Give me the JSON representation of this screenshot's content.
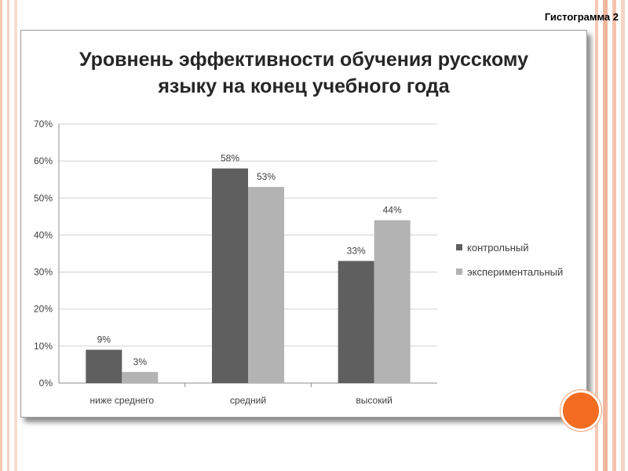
{
  "slide_label": "Гистограмма 2",
  "colors": {
    "series1": "#5f5f5f",
    "series2": "#b3b3b3",
    "accent": "#f36c21"
  },
  "chart_data": {
    "type": "bar",
    "title_lines": [
      "Уровнень эффективности обучения русскому",
      "языку на конец  учебного года"
    ],
    "categories": [
      "ниже среднего",
      "средний",
      "высокий"
    ],
    "series": [
      {
        "name": "контрольный",
        "values": [
          9,
          58,
          33
        ],
        "labels": [
          "9%",
          "58%",
          "33%"
        ]
      },
      {
        "name": "экспериментальный",
        "values": [
          3,
          53,
          44
        ],
        "labels": [
          "3%",
          "53%",
          "44%"
        ]
      }
    ],
    "yticks": [
      "0%",
      "10%",
      "20%",
      "30%",
      "40%",
      "50%",
      "60%",
      "70%"
    ],
    "ylim": [
      0,
      70
    ],
    "grid": true,
    "legend": "right"
  }
}
